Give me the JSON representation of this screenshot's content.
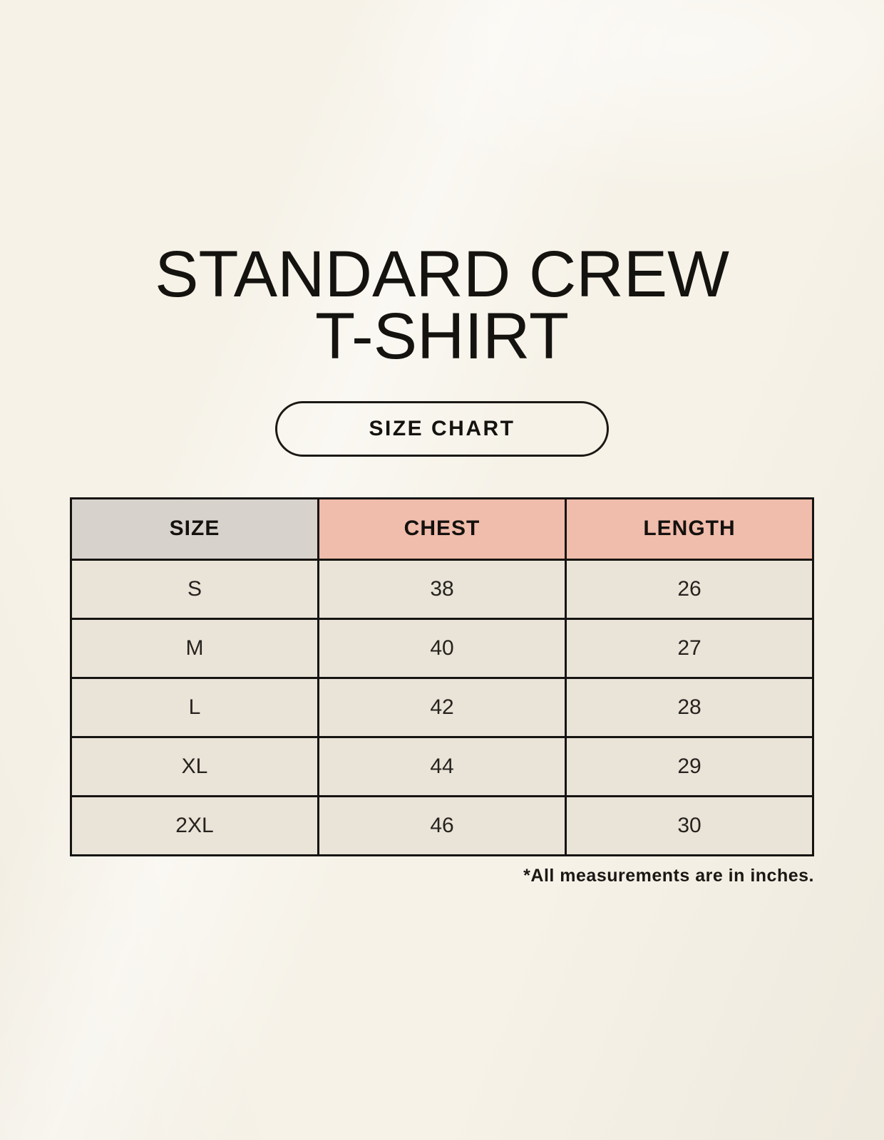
{
  "title": {
    "line1": "STANDARD CREW",
    "line2": "T-SHIRT"
  },
  "size_chart_button": {
    "label": "SIZE CHART"
  },
  "footnote": "*All measurements are in inches.",
  "chart_data": {
    "type": "table",
    "title": "STANDARD CREW T-SHIRT",
    "subtitle": "SIZE CHART",
    "columns": [
      "SIZE",
      "CHEST",
      "LENGTH"
    ],
    "rows": [
      {
        "size": "S",
        "chest": 38,
        "length": 26
      },
      {
        "size": "M",
        "chest": 40,
        "length": 27
      },
      {
        "size": "L",
        "chest": 42,
        "length": 28
      },
      {
        "size": "XL",
        "chest": 44,
        "length": 29
      },
      {
        "size": "2XL",
        "chest": 46,
        "length": 30
      }
    ],
    "units": "inches",
    "note": "*All measurements are in inches."
  },
  "colors": {
    "background": "#f6f2e8",
    "header_accent_pink": "#f0bcab",
    "size_column_gray": "#d8d2cc",
    "cell_cream": "#eae3d8",
    "border": "#161412",
    "text": "#171513"
  }
}
